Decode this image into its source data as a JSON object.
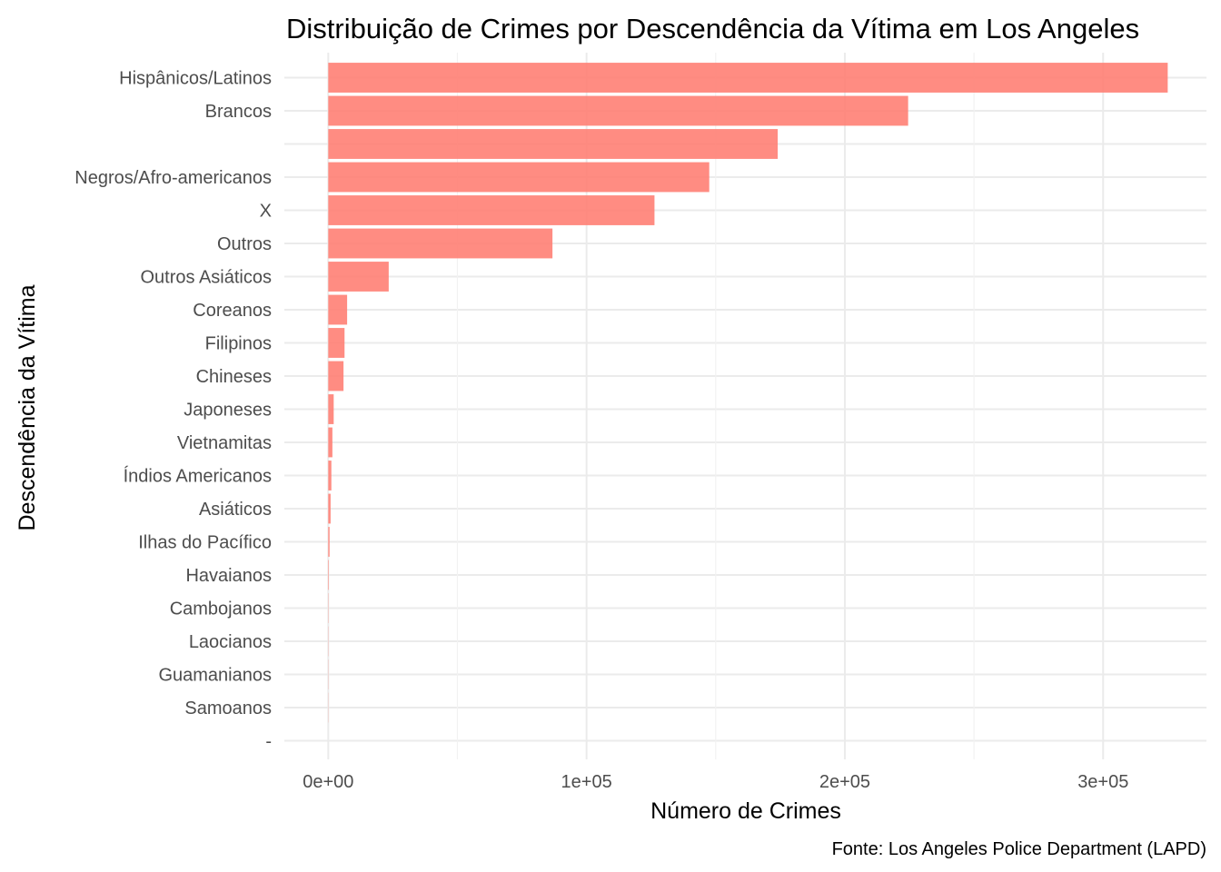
{
  "chart_data": {
    "type": "bar",
    "orientation": "horizontal",
    "title": "Distribuição de Crimes por Descendência da Vítima em Los Angeles",
    "xlabel": "Número de Crimes",
    "ylabel": "Descendência da Vítima",
    "caption": "Fonte: Los Angeles Police Department (LAPD)",
    "xlim": [
      -17000,
      340000
    ],
    "xticks": [
      0,
      100000,
      200000,
      300000
    ],
    "xtick_labels": [
      "0e+00",
      "1e+05",
      "2e+05",
      "3e+05"
    ],
    "grid": true,
    "bar_color": "#ff7f74",
    "categories": [
      "Hispânicos/Latinos",
      "Brancos",
      "",
      "Negros/Afro-americanos",
      "X",
      "Outros",
      "Outros Asiáticos",
      "Coreanos",
      "Filipinos",
      "Chineses",
      "Japoneses",
      "Vietnamitas",
      "Índios Americanos",
      "Asiáticos",
      "Ilhas do Pacífico",
      "Havaianos",
      "Cambojanos",
      "Laocianos",
      "Guamanianos",
      "Samoanos",
      "-"
    ],
    "values": [
      325000,
      224500,
      174000,
      147500,
      126300,
      86800,
      23400,
      7300,
      6300,
      5900,
      2100,
      1600,
      1200,
      900,
      500,
      200,
      100,
      80,
      70,
      60,
      1
    ]
  }
}
